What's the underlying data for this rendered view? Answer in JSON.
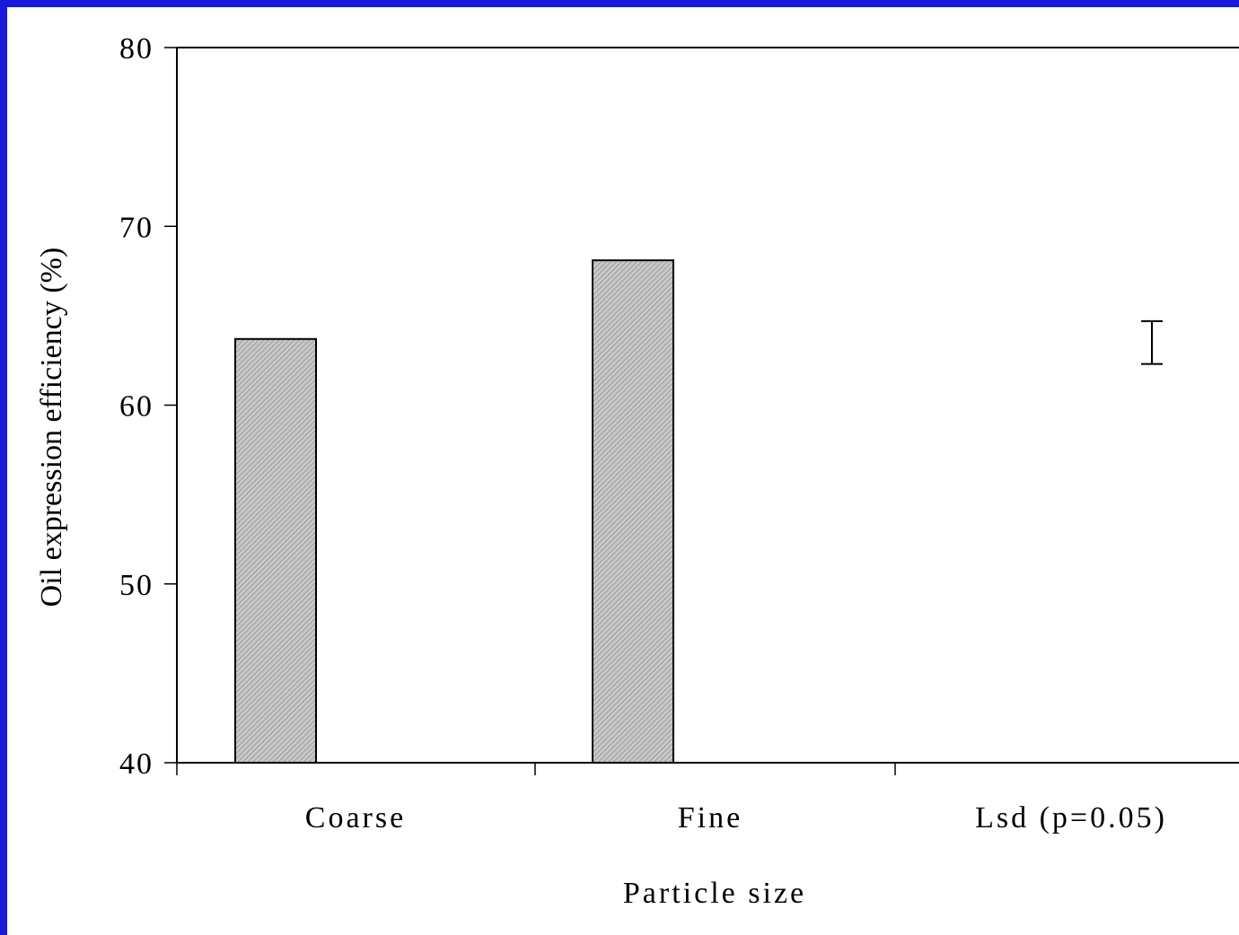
{
  "colors": {
    "frame": "#1a1adb",
    "background": "#ffffff",
    "bar_fill": "#c8c8c8",
    "stroke": "#000000"
  },
  "chart_data": {
    "type": "bar",
    "title": "",
    "xlabel": "Particle size",
    "ylabel": "Oil expression efficiency (%)",
    "categories": [
      "Coarse",
      "Fine",
      "Lsd (p=0.05)"
    ],
    "series": [
      {
        "values": [
          63.7,
          68.1,
          null
        ]
      }
    ],
    "lsd": {
      "category": "Lsd (p=0.05)",
      "center": 63.5,
      "value": 2.4
    },
    "ylim": [
      40,
      80
    ],
    "yticks": [
      40,
      50,
      60,
      70,
      80
    ],
    "grid": false,
    "bar_pattern": "diagonal hatch"
  }
}
